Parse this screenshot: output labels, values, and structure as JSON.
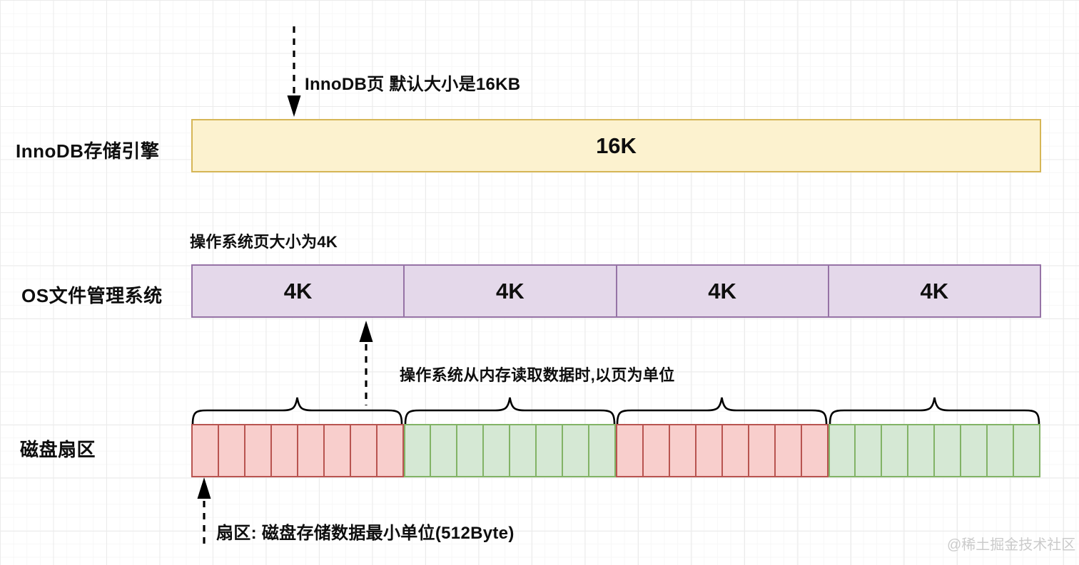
{
  "annotations": {
    "innodb_page": "InnoDB页 默认大小是16KB",
    "os_page_size": "操作系统页大小为4K",
    "os_read_unit": "操作系统从内存读取数据时,以页为单位",
    "sector_unit": "扇区: 磁盘存储数据最小单位(512Byte)"
  },
  "rows": {
    "innodb": {
      "label": "InnoDB存储引擎",
      "cell": "16K"
    },
    "os": {
      "label": "OS文件管理系统",
      "cells": [
        "4K",
        "4K",
        "4K",
        "4K"
      ]
    },
    "disk": {
      "label": "磁盘扇区",
      "groups": [
        {
          "color": "red",
          "count": 8
        },
        {
          "color": "green",
          "count": 8
        },
        {
          "color": "red",
          "count": 8
        },
        {
          "color": "green",
          "count": 8
        }
      ]
    }
  },
  "colors": {
    "yellow_fill": "#FCF2CF",
    "yellow_stroke": "#D6B656",
    "purple_fill": "#E4D8EA",
    "purple_stroke": "#9673A6",
    "red_fill": "#F8CECC",
    "red_stroke": "#B85450",
    "green_fill": "#D5E8D4",
    "green_stroke": "#82B366"
  },
  "watermark": "@稀土掘金技术社区"
}
